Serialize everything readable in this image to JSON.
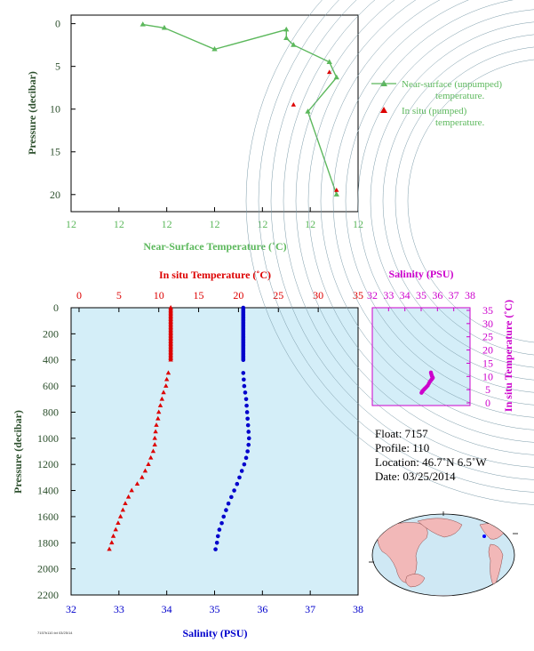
{
  "colors": {
    "near_surface": "#5cb85c",
    "in_situ_temp": "#dd0000",
    "salinity": "#0000cc",
    "ts_magenta": "#cc00cc",
    "panel_bg": "#d4eef8",
    "axis_text": "#2c4f2c"
  },
  "chart_data": [
    {
      "id": "near_surface",
      "type": "line",
      "xlabel": "Near-Surface Temperature (˚C)",
      "ylabel": "Pressure (decibar)",
      "xtick_labels": [
        "12",
        "12",
        "12",
        "12",
        "12",
        "12",
        "12"
      ],
      "yticks": [
        0,
        5,
        10,
        15,
        20
      ],
      "ylim": [
        -1,
        22
      ],
      "legend_position": "right",
      "series": [
        {
          "name": "Near-surface (unpumped) temperature.",
          "marker": "triangle-line",
          "points": [
            {
              "x": 12.05,
              "p": 0.1
            },
            {
              "x": 12.065,
              "p": 0.5
            },
            {
              "x": 12.1,
              "p": 3.0
            },
            {
              "x": 12.15,
              "p": 0.7
            },
            {
              "x": 12.15,
              "p": 1.7
            },
            {
              "x": 12.155,
              "p": 2.5
            },
            {
              "x": 12.18,
              "p": 4.5
            },
            {
              "x": 12.185,
              "p": 6.3
            },
            {
              "x": 12.165,
              "p": 10.3
            },
            {
              "x": 12.185,
              "p": 20.0
            }
          ]
        },
        {
          "name": "In situ (pumped) temperature.",
          "marker": "triangle",
          "points": [
            {
              "x": 12.18,
              "p": 5.7
            },
            {
              "x": 12.155,
              "p": 9.5
            },
            {
              "x": 12.185,
              "p": 19.5
            }
          ]
        }
      ]
    },
    {
      "id": "profile",
      "type": "scatter",
      "xlabel_top": "In situ Temperature (˚C)",
      "xlabel_bottom": "Salinity (PSU)",
      "ylabel": "Pressure (decibar)",
      "temp_ticks": [
        0,
        5,
        10,
        15,
        20,
        25,
        30,
        35
      ],
      "sal_ticks": [
        32,
        33,
        34,
        35,
        36,
        37,
        38
      ],
      "pressure_ticks": [
        0,
        200,
        400,
        600,
        800,
        1000,
        1200,
        1400,
        1600,
        1800,
        2000,
        2200
      ],
      "temp_xlim": [
        -1,
        35
      ],
      "sal_xlim": [
        32,
        38
      ],
      "ylim": [
        0,
        2200
      ],
      "temperature": [
        [
          11.5,
          0
        ],
        [
          11.5,
          10
        ],
        [
          11.5,
          20
        ],
        [
          11.5,
          30
        ],
        [
          11.5,
          40
        ],
        [
          11.5,
          50
        ],
        [
          11.5,
          60
        ],
        [
          11.5,
          70
        ],
        [
          11.5,
          80
        ],
        [
          11.5,
          90
        ],
        [
          11.5,
          100
        ],
        [
          11.5,
          110
        ],
        [
          11.5,
          120
        ],
        [
          11.5,
          130
        ],
        [
          11.5,
          140
        ],
        [
          11.5,
          150
        ],
        [
          11.5,
          160
        ],
        [
          11.5,
          170
        ],
        [
          11.5,
          180
        ],
        [
          11.5,
          190
        ],
        [
          11.5,
          200
        ],
        [
          11.5,
          210
        ],
        [
          11.5,
          220
        ],
        [
          11.5,
          230
        ],
        [
          11.5,
          240
        ],
        [
          11.5,
          250
        ],
        [
          11.5,
          260
        ],
        [
          11.5,
          270
        ],
        [
          11.5,
          280
        ],
        [
          11.5,
          290
        ],
        [
          11.5,
          300
        ],
        [
          11.5,
          310
        ],
        [
          11.5,
          320
        ],
        [
          11.5,
          330
        ],
        [
          11.5,
          340
        ],
        [
          11.5,
          350
        ],
        [
          11.5,
          360
        ],
        [
          11.5,
          370
        ],
        [
          11.5,
          380
        ],
        [
          11.5,
          390
        ],
        [
          11.5,
          400
        ],
        [
          11.2,
          500
        ],
        [
          11.0,
          550
        ],
        [
          10.9,
          600
        ],
        [
          10.6,
          650
        ],
        [
          10.4,
          700
        ],
        [
          10.2,
          750
        ],
        [
          10.0,
          800
        ],
        [
          9.9,
          850
        ],
        [
          9.7,
          900
        ],
        [
          9.6,
          950
        ],
        [
          9.5,
          1000
        ],
        [
          9.5,
          1050
        ],
        [
          9.3,
          1100
        ],
        [
          9.0,
          1150
        ],
        [
          8.7,
          1200
        ],
        [
          8.3,
          1250
        ],
        [
          7.9,
          1300
        ],
        [
          7.3,
          1350
        ],
        [
          6.6,
          1400
        ],
        [
          6.2,
          1450
        ],
        [
          5.8,
          1500
        ],
        [
          5.5,
          1550
        ],
        [
          5.2,
          1600
        ],
        [
          4.9,
          1650
        ],
        [
          4.6,
          1700
        ],
        [
          4.3,
          1750
        ],
        [
          4.1,
          1800
        ],
        [
          3.8,
          1850
        ]
      ],
      "salinity": [
        [
          35.6,
          0
        ],
        [
          35.6,
          10
        ],
        [
          35.6,
          20
        ],
        [
          35.6,
          30
        ],
        [
          35.6,
          40
        ],
        [
          35.6,
          50
        ],
        [
          35.6,
          60
        ],
        [
          35.6,
          70
        ],
        [
          35.6,
          80
        ],
        [
          35.6,
          90
        ],
        [
          35.6,
          100
        ],
        [
          35.6,
          110
        ],
        [
          35.6,
          120
        ],
        [
          35.6,
          130
        ],
        [
          35.6,
          140
        ],
        [
          35.6,
          150
        ],
        [
          35.6,
          160
        ],
        [
          35.6,
          170
        ],
        [
          35.6,
          180
        ],
        [
          35.6,
          190
        ],
        [
          35.6,
          200
        ],
        [
          35.6,
          210
        ],
        [
          35.6,
          220
        ],
        [
          35.6,
          230
        ],
        [
          35.6,
          240
        ],
        [
          35.6,
          250
        ],
        [
          35.6,
          260
        ],
        [
          35.6,
          270
        ],
        [
          35.6,
          280
        ],
        [
          35.6,
          290
        ],
        [
          35.6,
          300
        ],
        [
          35.6,
          310
        ],
        [
          35.6,
          320
        ],
        [
          35.6,
          330
        ],
        [
          35.6,
          340
        ],
        [
          35.6,
          350
        ],
        [
          35.6,
          360
        ],
        [
          35.6,
          370
        ],
        [
          35.6,
          380
        ],
        [
          35.6,
          390
        ],
        [
          35.6,
          400
        ],
        [
          35.6,
          500
        ],
        [
          35.61,
          550
        ],
        [
          35.62,
          600
        ],
        [
          35.64,
          650
        ],
        [
          35.66,
          700
        ],
        [
          35.67,
          750
        ],
        [
          35.68,
          800
        ],
        [
          35.69,
          850
        ],
        [
          35.7,
          900
        ],
        [
          35.71,
          950
        ],
        [
          35.72,
          1000
        ],
        [
          35.71,
          1050
        ],
        [
          35.69,
          1100
        ],
        [
          35.66,
          1150
        ],
        [
          35.62,
          1200
        ],
        [
          35.57,
          1250
        ],
        [
          35.52,
          1300
        ],
        [
          35.47,
          1350
        ],
        [
          35.41,
          1400
        ],
        [
          35.35,
          1450
        ],
        [
          35.29,
          1500
        ],
        [
          35.24,
          1550
        ],
        [
          35.19,
          1600
        ],
        [
          35.15,
          1650
        ],
        [
          35.1,
          1700
        ],
        [
          35.07,
          1750
        ],
        [
          35.05,
          1800
        ],
        [
          35.02,
          1850
        ]
      ]
    },
    {
      "id": "ts_diagram",
      "type": "scatter",
      "xlabel": "Salinity (PSU)",
      "ylabel": "In situ Temperature (˚C)",
      "xticks": [
        32,
        33,
        34,
        35,
        36,
        37,
        38
      ],
      "yticks": [
        0,
        5,
        10,
        15,
        20,
        25,
        30,
        35
      ],
      "xlim": [
        32,
        38
      ],
      "ylim": [
        -1,
        36
      ],
      "points": [
        [
          35.6,
          11.5
        ],
        [
          35.62,
          11.0
        ],
        [
          35.64,
          10.6
        ],
        [
          35.66,
          10.2
        ],
        [
          35.68,
          9.9
        ],
        [
          35.7,
          9.6
        ],
        [
          35.72,
          9.5
        ],
        [
          35.69,
          9.3
        ],
        [
          35.66,
          9.0
        ],
        [
          35.62,
          8.7
        ],
        [
          35.57,
          8.3
        ],
        [
          35.52,
          7.9
        ],
        [
          35.47,
          7.3
        ],
        [
          35.41,
          6.6
        ],
        [
          35.35,
          6.2
        ],
        [
          35.29,
          5.8
        ],
        [
          35.24,
          5.5
        ],
        [
          35.19,
          5.2
        ],
        [
          35.15,
          4.9
        ],
        [
          35.1,
          4.6
        ],
        [
          35.07,
          4.3
        ],
        [
          35.05,
          4.1
        ],
        [
          35.02,
          3.8
        ]
      ]
    }
  ],
  "float_info": {
    "float": "Float: 7157",
    "profile": "Profile: 110",
    "location": "Location: 46.7˚N 6.5˚W",
    "date": "Date: 03/25/2014"
  },
  "footer_text": "7157b110.txt 03/25/14"
}
